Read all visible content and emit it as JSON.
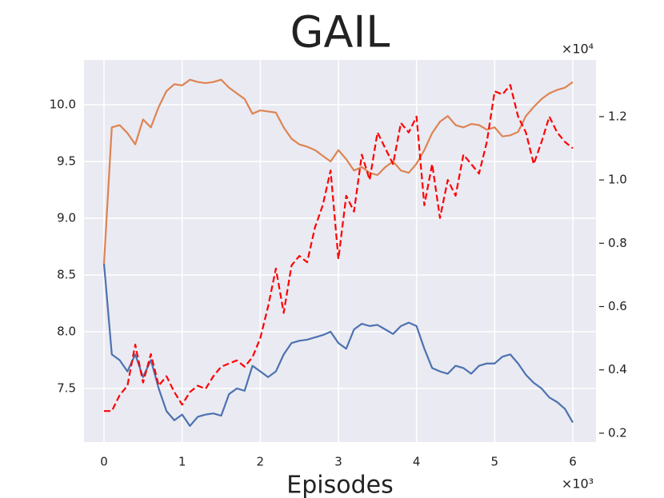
{
  "chart_data": {
    "type": "line",
    "title": "GAIL",
    "xlabel": "Episodes",
    "x_multiplier": "×10³",
    "y2_multiplier": "×10⁴",
    "x": [
      0,
      0.1,
      0.2,
      0.3,
      0.4,
      0.5,
      0.6,
      0.7,
      0.8,
      0.9,
      1.0,
      1.1,
      1.2,
      1.3,
      1.4,
      1.5,
      1.6,
      1.7,
      1.8,
      1.9,
      2.0,
      2.1,
      2.2,
      2.3,
      2.4,
      2.5,
      2.6,
      2.7,
      2.8,
      2.9,
      3.0,
      3.1,
      3.2,
      3.3,
      3.4,
      3.5,
      3.6,
      3.7,
      3.8,
      3.9,
      4.0,
      4.1,
      4.2,
      4.3,
      4.4,
      4.5,
      4.6,
      4.7,
      4.8,
      4.9,
      5.0,
      5.1,
      5.2,
      5.3,
      5.4,
      5.5,
      5.6,
      5.7,
      5.8,
      5.9,
      6.0
    ],
    "series": [
      {
        "color": "#4c72b0",
        "dash": false,
        "axis": "y",
        "values": [
          8.6,
          7.8,
          7.75,
          7.65,
          7.8,
          7.6,
          7.75,
          7.5,
          7.3,
          7.22,
          7.27,
          7.17,
          7.25,
          7.27,
          7.28,
          7.26,
          7.45,
          7.5,
          7.48,
          7.7,
          7.65,
          7.6,
          7.65,
          7.8,
          7.9,
          7.92,
          7.93,
          7.95,
          7.97,
          8.0,
          7.9,
          7.85,
          8.02,
          8.07,
          8.05,
          8.06,
          8.02,
          7.98,
          8.05,
          8.08,
          8.05,
          7.85,
          7.68,
          7.65,
          7.63,
          7.7,
          7.68,
          7.63,
          7.7,
          7.72,
          7.72,
          7.78,
          7.8,
          7.72,
          7.62,
          7.55,
          7.5,
          7.42,
          7.38,
          7.32,
          7.2
        ]
      },
      {
        "color": "#dd8452",
        "dash": false,
        "axis": "y",
        "values": [
          8.6,
          9.8,
          9.82,
          9.75,
          9.65,
          9.87,
          9.8,
          9.98,
          10.12,
          10.18,
          10.17,
          10.22,
          10.2,
          10.19,
          10.2,
          10.22,
          10.15,
          10.1,
          10.05,
          9.92,
          9.95,
          9.94,
          9.93,
          9.8,
          9.7,
          9.65,
          9.63,
          9.6,
          9.55,
          9.5,
          9.6,
          9.52,
          9.42,
          9.45,
          9.4,
          9.38,
          9.45,
          9.5,
          9.42,
          9.4,
          9.48,
          9.6,
          9.75,
          9.85,
          9.9,
          9.82,
          9.8,
          9.83,
          9.82,
          9.78,
          9.8,
          9.72,
          9.73,
          9.76,
          9.9,
          9.98,
          10.05,
          10.1,
          10.13,
          10.15,
          10.2
        ]
      },
      {
        "color": "#ff0000",
        "dash": true,
        "axis": "y2",
        "values": [
          0.27,
          0.27,
          0.32,
          0.35,
          0.48,
          0.36,
          0.45,
          0.35,
          0.38,
          0.33,
          0.29,
          0.33,
          0.35,
          0.34,
          0.38,
          0.41,
          0.42,
          0.43,
          0.41,
          0.44,
          0.5,
          0.6,
          0.72,
          0.58,
          0.73,
          0.76,
          0.74,
          0.85,
          0.92,
          1.03,
          0.75,
          0.95,
          0.9,
          1.08,
          1.0,
          1.15,
          1.1,
          1.05,
          1.18,
          1.15,
          1.2,
          0.92,
          1.05,
          0.88,
          1.0,
          0.95,
          1.08,
          1.05,
          1.02,
          1.12,
          1.28,
          1.27,
          1.3,
          1.2,
          1.15,
          1.05,
          1.12,
          1.2,
          1.15,
          1.12,
          1.1
        ]
      }
    ],
    "xlim": [
      -0.256,
      6.297
    ],
    "xticks": [
      0,
      1,
      2,
      3,
      4,
      5,
      6
    ],
    "ylim": [
      7.028,
      10.394
    ],
    "yticks": [
      {
        "value": 7.5,
        "label": "7.5"
      },
      {
        "value": 8,
        "label": "8.0"
      },
      {
        "value": 8.5,
        "label": "8.5"
      },
      {
        "value": 9,
        "label": "9.0"
      },
      {
        "value": 9.5,
        "label": "9.5"
      },
      {
        "value": 10,
        "label": "10.0"
      }
    ],
    "y2lim": [
      0.172,
      1.379
    ],
    "y2ticks": [
      0.2,
      0.4,
      0.6,
      0.8,
      {
        "value": 1,
        "label": "1.0"
      },
      1.2
    ],
    "grid": true,
    "background": "#eaeaf2"
  }
}
